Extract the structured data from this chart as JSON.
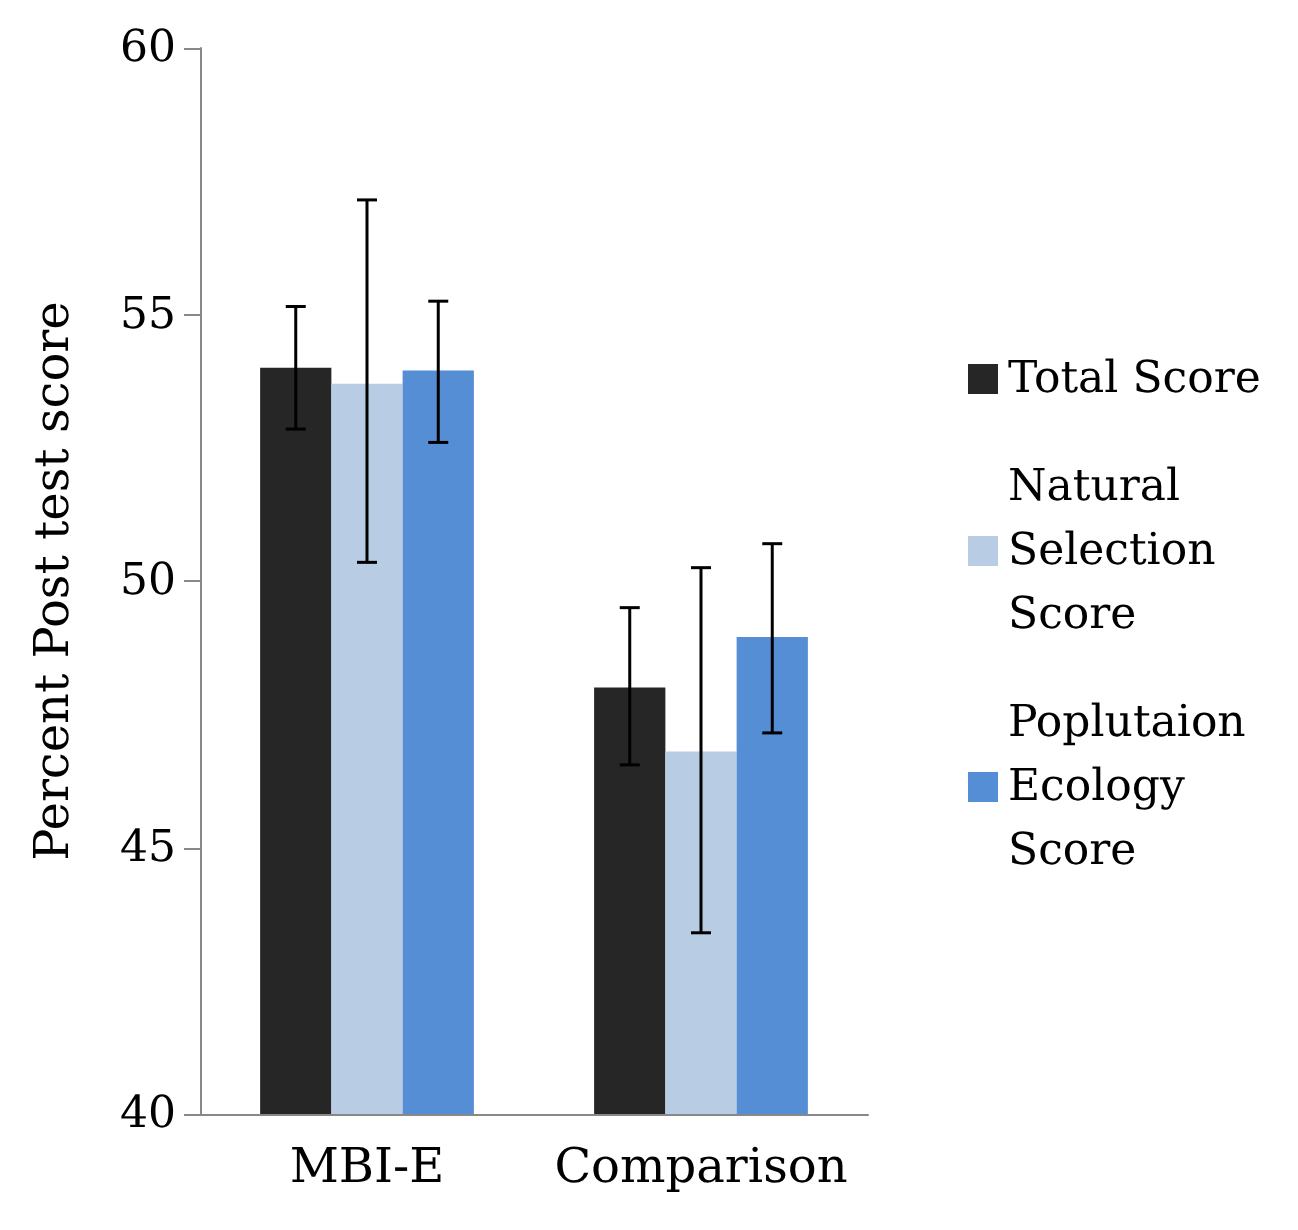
{
  "chart_data": {
    "type": "bar",
    "ylabel": "Percent Post test score",
    "categories": [
      "MBI-E",
      "Comparison"
    ],
    "ylim": [
      40,
      60
    ],
    "yticks": [
      40,
      45,
      50,
      55,
      60
    ],
    "grid": false,
    "legend": "right",
    "series": [
      {
        "name": "Total Score",
        "color": "#262626",
        "values": [
          54.0,
          48.0
        ],
        "errors": [
          [
            52.85,
            55.15
          ],
          [
            46.55,
            49.5
          ]
        ]
      },
      {
        "name": "Natural Selection Score",
        "color": "#b8cce4",
        "values": [
          53.7,
          46.8
        ],
        "errors": [
          [
            50.35,
            57.15
          ],
          [
            43.4,
            50.25
          ]
        ]
      },
      {
        "name": "Poplutaion Ecology Score",
        "color": "#558ed5",
        "values": [
          53.95,
          48.95
        ],
        "errors": [
          [
            52.6,
            55.25
          ],
          [
            47.15,
            50.7
          ]
        ]
      }
    ]
  }
}
